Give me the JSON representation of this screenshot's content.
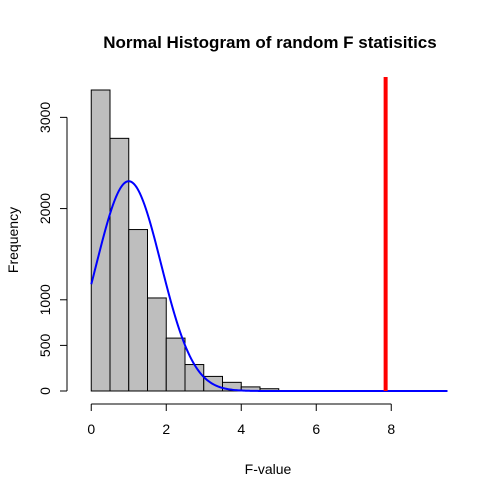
{
  "chart_data": {
    "type": "bar",
    "title": "Normal Histogram of random F statisitics",
    "xlabel": "F-value",
    "ylabel": "Frequency",
    "xlim": [
      -0.3,
      9.7
    ],
    "ylim": [
      0,
      3300
    ],
    "x_ticks": [
      0,
      2,
      4,
      6,
      8
    ],
    "y_ticks": [
      0,
      500,
      1000,
      2000,
      3000
    ],
    "bin_width": 0.5,
    "bins": [
      {
        "start": 0.0,
        "end": 0.5,
        "count": 3300
      },
      {
        "start": 0.5,
        "end": 1.0,
        "count": 2770
      },
      {
        "start": 1.0,
        "end": 1.5,
        "count": 1770
      },
      {
        "start": 1.5,
        "end": 2.0,
        "count": 1020
      },
      {
        "start": 2.0,
        "end": 2.5,
        "count": 580
      },
      {
        "start": 2.5,
        "end": 3.0,
        "count": 290
      },
      {
        "start": 3.0,
        "end": 3.5,
        "count": 160
      },
      {
        "start": 3.5,
        "end": 4.0,
        "count": 95
      },
      {
        "start": 4.0,
        "end": 4.5,
        "count": 45
      },
      {
        "start": 4.5,
        "end": 5.0,
        "count": 25
      }
    ],
    "normal_curve": {
      "mean": 1.0,
      "sd": 0.86,
      "peak": 2300,
      "x_range": [
        0,
        9.5
      ]
    },
    "vertical_line": {
      "x": 7.85
    },
    "colors": {
      "bars": "#bebebe",
      "bar_border": "#000000",
      "curve": "#0000ff",
      "vline": "#ff0000"
    }
  }
}
